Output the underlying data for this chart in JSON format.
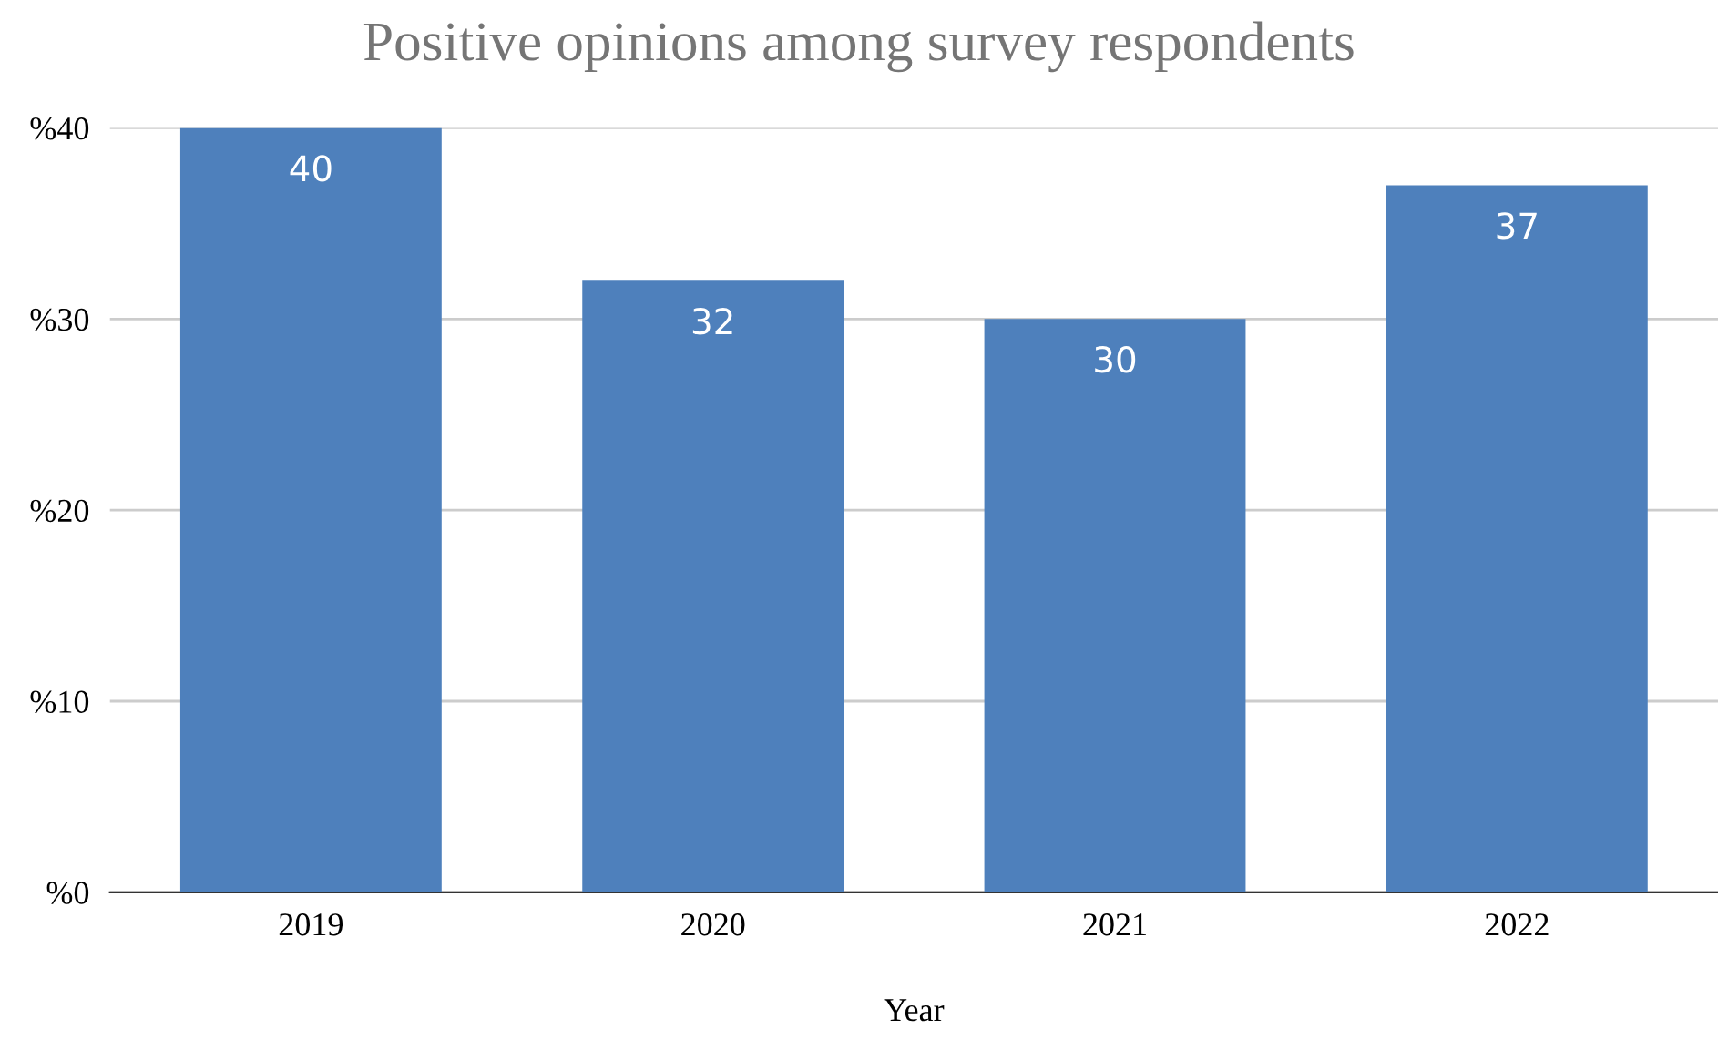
{
  "chart_data": {
    "type": "bar",
    "title": "Positive opinions among survey respondents",
    "xlabel": "Year",
    "categories": [
      "2019",
      "2020",
      "2021",
      "2022"
    ],
    "values": [
      40,
      32,
      30,
      37
    ],
    "color": "#4e80bc",
    "data_labels": true,
    "ylim": [
      0,
      40
    ],
    "yticks": [
      {
        "value": 0,
        "label": "%0"
      },
      {
        "value": 10,
        "label": "%10"
      },
      {
        "value": 20,
        "label": "%20"
      },
      {
        "value": 30,
        "label": "%30"
      },
      {
        "value": 40,
        "label": "%40"
      }
    ],
    "grid": "y",
    "legend": false
  }
}
